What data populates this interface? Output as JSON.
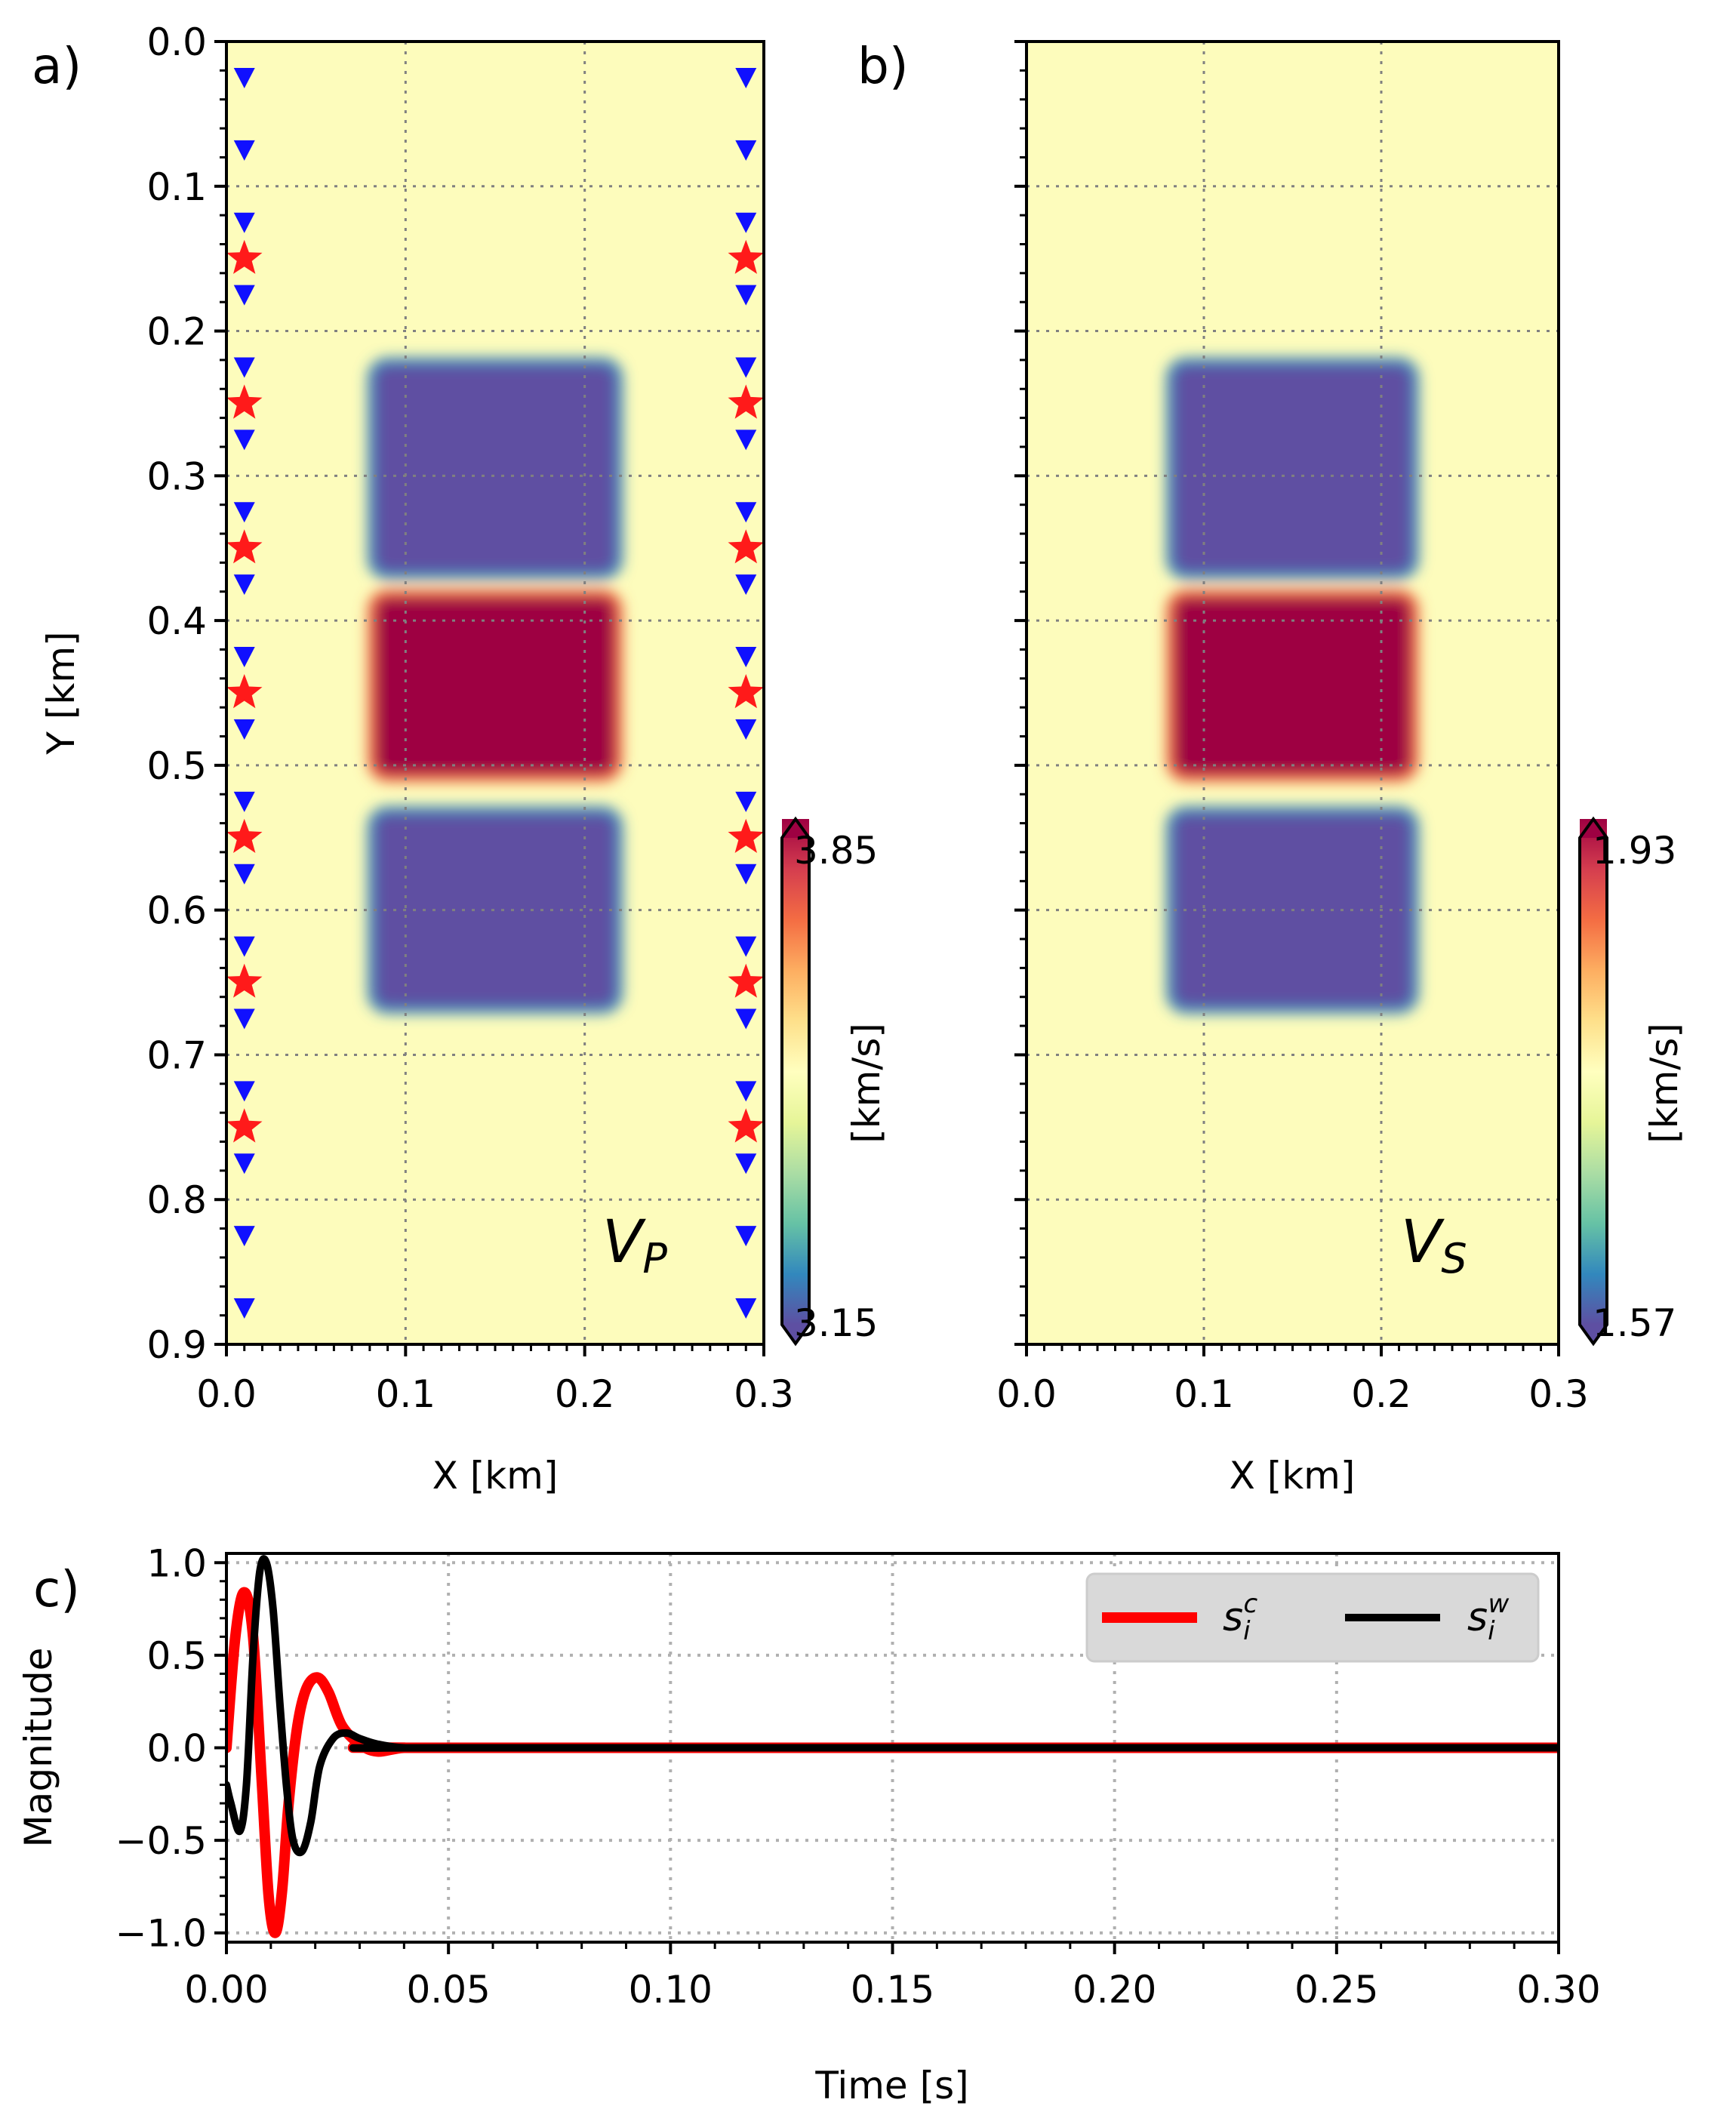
{
  "chart_data": [
    {
      "type": "heatmap",
      "panel_label": "a)",
      "xlabel": "X [km]",
      "ylabel": "Y [km]",
      "xlim": [
        0.0,
        0.3
      ],
      "ylim": [
        0.9,
        0.0
      ],
      "xticks": [
        0.0,
        0.1,
        0.2,
        0.3
      ],
      "xtick_labels": [
        "0.0",
        "0.1",
        "0.2",
        "0.3"
      ],
      "yticks": [
        0.0,
        0.1,
        0.2,
        0.3,
        0.4,
        0.5,
        0.6,
        0.7,
        0.8,
        0.9
      ],
      "ytick_labels": [
        "0.0",
        "0.1",
        "0.2",
        "0.3",
        "0.4",
        "0.5",
        "0.6",
        "0.7",
        "0.8",
        "0.9"
      ],
      "grid": true,
      "annotation": {
        "base": "V",
        "subscript": "P"
      },
      "background_value": 3.5,
      "anomalies": [
        {
          "x": [
            0.08,
            0.22
          ],
          "y": [
            0.22,
            0.37
          ],
          "value": 3.15,
          "kind": "low"
        },
        {
          "x": [
            0.08,
            0.22
          ],
          "y": [
            0.38,
            0.51
          ],
          "value": 3.85,
          "kind": "high"
        },
        {
          "x": [
            0.08,
            0.22
          ],
          "y": [
            0.53,
            0.67
          ],
          "value": 3.15,
          "kind": "low"
        }
      ],
      "colorbar": {
        "label": "[km/s]",
        "min": 3.15,
        "max": 3.85,
        "min_label": "3.15",
        "max_label": "3.85",
        "colormap": "Spectral_r",
        "extend": "both"
      },
      "receivers": {
        "x": [
          0.01,
          0.29
        ],
        "y": [
          0.025,
          0.075,
          0.125,
          0.175,
          0.225,
          0.275,
          0.325,
          0.375,
          0.425,
          0.475,
          0.525,
          0.575,
          0.625,
          0.675,
          0.725,
          0.775,
          0.825,
          0.875
        ],
        "marker": "down-triangle",
        "color": "#1010ff"
      },
      "sources": {
        "x": [
          0.01,
          0.29
        ],
        "y": [
          0.15,
          0.25,
          0.35,
          0.45,
          0.55,
          0.65,
          0.75
        ],
        "marker": "star",
        "color": "#ff1a1a"
      }
    },
    {
      "type": "heatmap",
      "panel_label": "b)",
      "xlabel": "X [km]",
      "ylabel": "",
      "xlim": [
        0.0,
        0.3
      ],
      "ylim": [
        0.9,
        0.0
      ],
      "xticks": [
        0.0,
        0.1,
        0.2,
        0.3
      ],
      "xtick_labels": [
        "0.0",
        "0.1",
        "0.2",
        "0.3"
      ],
      "yticks": [
        0.0,
        0.1,
        0.2,
        0.3,
        0.4,
        0.5,
        0.6,
        0.7,
        0.8,
        0.9
      ],
      "grid": true,
      "annotation": {
        "base": "V",
        "subscript": "S"
      },
      "background_value": 1.75,
      "anomalies": [
        {
          "x": [
            0.08,
            0.22
          ],
          "y": [
            0.22,
            0.37
          ],
          "value": 1.57,
          "kind": "low"
        },
        {
          "x": [
            0.08,
            0.22
          ],
          "y": [
            0.38,
            0.51
          ],
          "value": 1.93,
          "kind": "high"
        },
        {
          "x": [
            0.08,
            0.22
          ],
          "y": [
            0.53,
            0.67
          ],
          "value": 1.57,
          "kind": "low"
        }
      ],
      "colorbar": {
        "label": "[km/s]",
        "min": 1.57,
        "max": 1.93,
        "min_label": "1.57",
        "max_label": "1.93",
        "colormap": "Spectral_r",
        "extend": "both"
      }
    },
    {
      "type": "line",
      "panel_label": "c)",
      "xlabel": "Time [s]",
      "ylabel": "Magnitude",
      "xlim": [
        0.0,
        0.3
      ],
      "ylim": [
        -1.05,
        1.05
      ],
      "xticks": [
        0.0,
        0.05,
        0.1,
        0.15,
        0.2,
        0.25,
        0.3
      ],
      "xtick_labels": [
        "0.00",
        "0.05",
        "0.10",
        "0.15",
        "0.20",
        "0.25",
        "0.30"
      ],
      "yticks": [
        -1.0,
        -0.5,
        0.0,
        0.5,
        1.0
      ],
      "ytick_labels": [
        "−1.0",
        "−0.5",
        "0.0",
        "0.5",
        "1.0"
      ],
      "grid": true,
      "legend": {
        "placement": "top-right",
        "ncol": 2
      },
      "series": [
        {
          "name": "s_i^c",
          "legend_base": "s",
          "legend_sub": "i",
          "legend_sup": "c",
          "color": "#ff0000",
          "x": [
            0.0,
            0.002,
            0.004,
            0.006,
            0.008,
            0.0095,
            0.011,
            0.0125,
            0.014,
            0.016,
            0.018,
            0.0205,
            0.023,
            0.026,
            0.03,
            0.034,
            0.04,
            0.05,
            0.3
          ],
          "y": [
            0.0,
            0.6,
            0.84,
            0.6,
            -0.2,
            -0.8,
            -1.0,
            -0.78,
            -0.3,
            0.12,
            0.32,
            0.38,
            0.3,
            0.12,
            0.02,
            -0.02,
            0.0,
            0.0,
            0.0
          ]
        },
        {
          "name": "s_i^w",
          "legend_base": "s",
          "legend_sub": "i",
          "legend_sup": "w",
          "color": "#000000",
          "x": [
            0.0,
            0.001,
            0.003,
            0.0045,
            0.006,
            0.0075,
            0.009,
            0.0105,
            0.012,
            0.0135,
            0.015,
            0.017,
            0.019,
            0.021,
            0.024,
            0.027,
            0.03,
            0.034,
            0.04,
            0.05,
            0.3
          ],
          "y": [
            -0.2,
            -0.3,
            -0.45,
            -0.2,
            0.5,
            0.95,
            1.0,
            0.75,
            0.25,
            -0.2,
            -0.5,
            -0.56,
            -0.4,
            -0.1,
            0.05,
            0.08,
            0.05,
            0.02,
            0.0,
            0.0,
            0.0
          ]
        }
      ]
    }
  ]
}
